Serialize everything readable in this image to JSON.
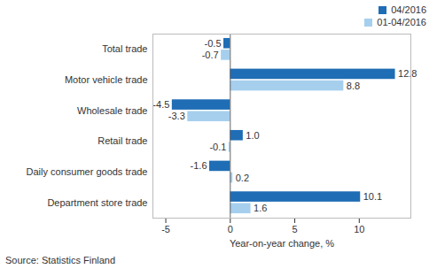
{
  "chart_data": {
    "type": "bar",
    "orientation": "horizontal",
    "caption": "Source: Statistics Finland",
    "xlabel": "Year-on-year change, %",
    "categories": [
      "Total trade",
      "Motor vehicle trade",
      "Wholesale trade",
      "Retail trade",
      "Daily consumer goods trade",
      "Department store trade"
    ],
    "series": [
      {
        "name": "04/2016",
        "color": "#1f6db5",
        "values": [
          -0.5,
          12.8,
          -4.5,
          1.0,
          -1.6,
          10.1
        ],
        "value_labels": [
          "-0.5",
          "12.8",
          "-4.5",
          "1.0",
          "-1.6",
          "10.1"
        ]
      },
      {
        "name": "01-04/2016",
        "color": "#a6cfee",
        "values": [
          -0.7,
          8.8,
          -3.3,
          -0.1,
          0.2,
          1.6
        ]
      }
    ],
    "xlim": [
      -6,
      14
    ],
    "xticks": [
      -5,
      0,
      5,
      10
    ],
    "grid": false,
    "legend": "upper right",
    "data_labels": true
  }
}
